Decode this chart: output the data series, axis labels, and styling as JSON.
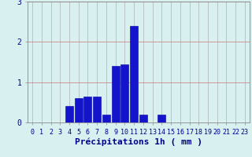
{
  "hours": [
    0,
    1,
    2,
    3,
    4,
    5,
    6,
    7,
    8,
    9,
    10,
    11,
    12,
    13,
    14,
    15,
    16,
    17,
    18,
    19,
    20,
    21,
    22,
    23
  ],
  "values": [
    0,
    0,
    0,
    0,
    0.4,
    0.6,
    0.65,
    0.65,
    0.2,
    1.4,
    1.45,
    2.4,
    0.2,
    0,
    0.2,
    0,
    0,
    0,
    0,
    0,
    0,
    0,
    0,
    0
  ],
  "bar_color": "#1414cc",
  "bar_edge_color": "#0000aa",
  "bg_color": "#d8f0f0",
  "grid_color": "#b8d8d8",
  "xlabel": "Précipitations 1h ( mm )",
  "ylim": [
    0,
    3
  ],
  "yticks": [
    0,
    1,
    2,
    3
  ],
  "label_fontsize": 7,
  "tick_fontsize": 6
}
